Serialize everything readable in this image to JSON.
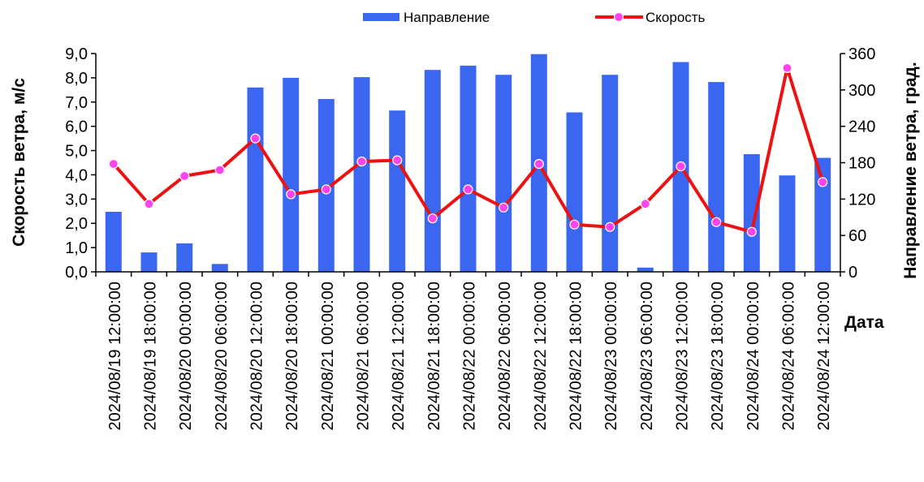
{
  "chart_data": {
    "type": "bar",
    "categories": [
      "2024/08/19 12:00:00",
      "2024/08/19 18:00:00",
      "2024/08/20 00:00:00",
      "2024/08/20 06:00:00",
      "2024/08/20 12:00:00",
      "2024/08/20 18:00:00",
      "2024/08/21 00:00:00",
      "2024/08/21 06:00:00",
      "2024/08/21 12:00:00",
      "2024/08/21 18:00:00",
      "2024/08/22 00:00:00",
      "2024/08/22 06:00:00",
      "2024/08/22 12:00:00",
      "2024/08/22 18:00:00",
      "2024/08/23 00:00:00",
      "2024/08/23 06:00:00",
      "2024/08/23 12:00:00",
      "2024/08/23 18:00:00",
      "2024/08/24 00:00:00",
      "2024/08/24 06:00:00",
      "2024/08/24 12:00:00"
    ],
    "series": [
      {
        "name": "Направление",
        "type": "bar",
        "axis": "right",
        "color": "#3a66f0",
        "values": [
          99,
          32,
          47,
          13,
          304,
          320,
          285,
          321,
          266,
          333,
          340,
          325,
          359,
          263,
          325,
          7,
          346,
          313,
          194,
          159,
          188
        ]
      },
      {
        "name": "Скорость",
        "type": "line",
        "axis": "left",
        "color": "#ee1111",
        "marker_color": "#ff44ee",
        "values": [
          4.45,
          2.8,
          3.95,
          4.2,
          5.5,
          3.2,
          3.4,
          4.55,
          4.6,
          2.2,
          3.4,
          2.65,
          4.45,
          1.95,
          1.85,
          2.8,
          4.35,
          2.05,
          1.65,
          8.4,
          3.7
        ]
      }
    ],
    "left_axis": {
      "label": "Скорость ветра, м/с",
      "ylim": [
        0,
        9
      ],
      "ticks": [
        "0,0",
        "1,0",
        "2,0",
        "3,0",
        "4,0",
        "5,0",
        "6,0",
        "7,0",
        "8,0",
        "9,0"
      ]
    },
    "right_axis": {
      "label": "Направление ветра, град.",
      "ylim": [
        0,
        360
      ],
      "ticks": [
        "0",
        "60",
        "120",
        "180",
        "240",
        "300",
        "360"
      ]
    },
    "xlabel": "Дата",
    "title": "",
    "grid": false,
    "legend_position": "top"
  }
}
